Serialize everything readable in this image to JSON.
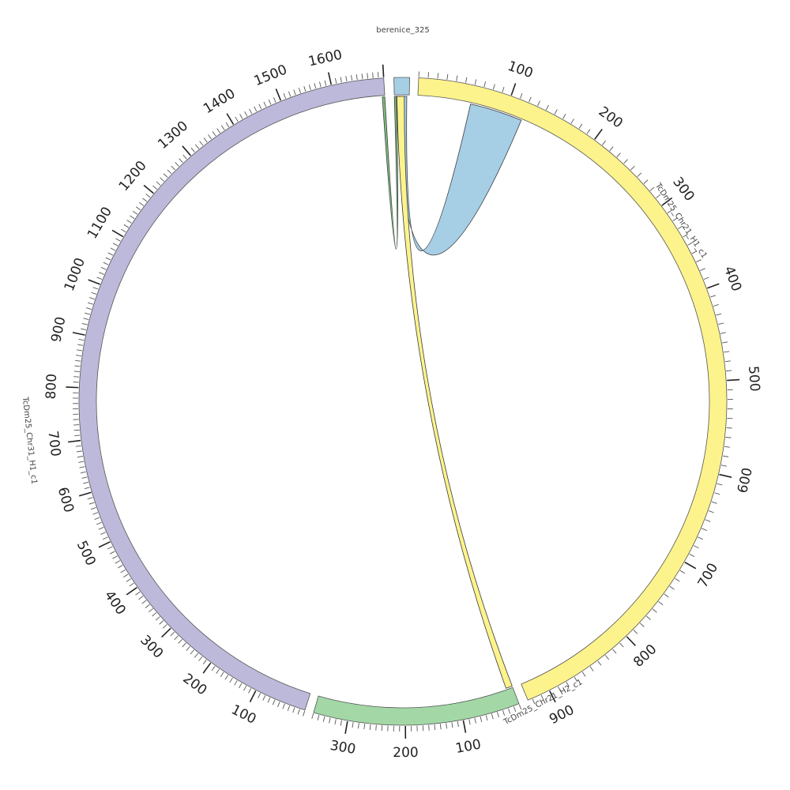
{
  "segments": [
    {
      "id": "berenice",
      "name": "berenice_325",
      "length": 30,
      "color": "#a6cfe6",
      "ticks": []
    },
    {
      "id": "chr21h1",
      "name": "TcDm25_Chr21_H1_c1",
      "length": 925,
      "color": "#fdf38c",
      "ticks": [
        "100",
        "200",
        "300",
        "400",
        "500",
        "600",
        "700",
        "800",
        "900"
      ]
    },
    {
      "id": "chr21h2",
      "name": "TcDm25_Chr21_H2_c1",
      "length": 360,
      "color": "#a3d8a6",
      "ticks": [
        "100",
        "200",
        "300"
      ]
    },
    {
      "id": "chr31h1",
      "name": "TcDm25_Chr31_H1_c1",
      "length": 1700,
      "color": "#bdb9da",
      "ticks": [
        "100",
        "200",
        "300",
        "400",
        "500",
        "600",
        "700",
        "800",
        "900",
        "1000",
        "1100",
        "1200",
        "1300",
        "1400",
        "1500",
        "1600"
      ]
    }
  ],
  "links": [
    {
      "from": "berenice",
      "from_range": [
        5,
        25
      ],
      "to": "chr21h1",
      "to_range": [
        60,
        120
      ],
      "color": "#a6cfe6"
    },
    {
      "from": "berenice",
      "from_range": [
        0,
        4
      ],
      "to": "chr31h1",
      "to_range": [
        1695,
        1700
      ],
      "color": "#7fbf7f"
    },
    {
      "from": "berenice",
      "from_range": [
        5,
        20
      ],
      "to": "chr21h2",
      "to_range": [
        0,
        12
      ],
      "color": "#fdf38c"
    }
  ]
}
